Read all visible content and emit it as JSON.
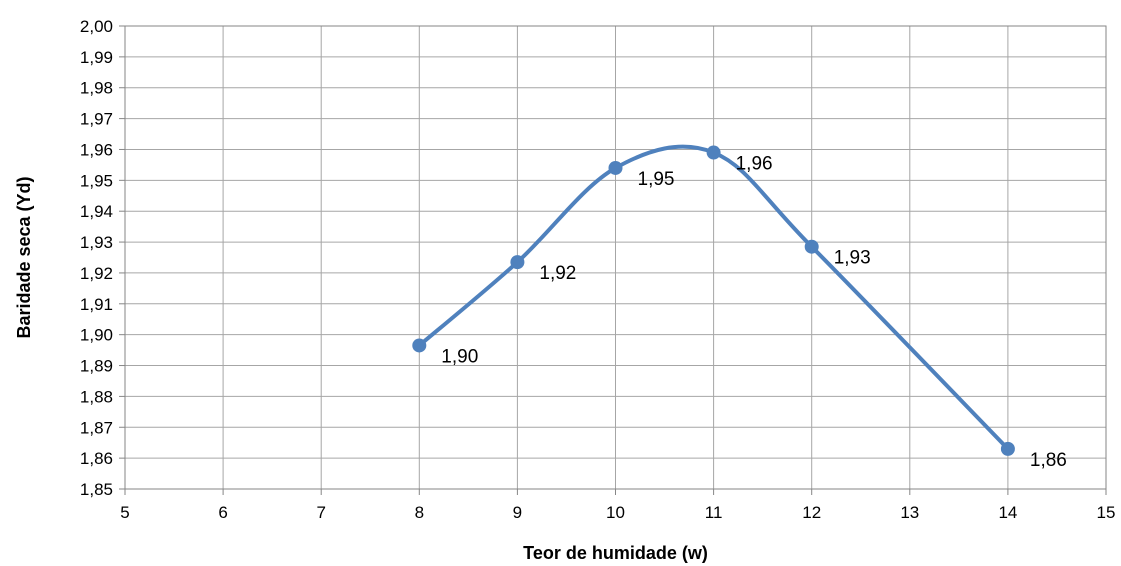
{
  "chart_data": {
    "type": "line",
    "title": "",
    "xlabel": "Teor de humidade (w)",
    "ylabel": "Baridade seca (Yd)",
    "xlim": [
      5,
      15
    ],
    "ylim": [
      1.85,
      2.0
    ],
    "x_ticks": [
      "5",
      "6",
      "7",
      "8",
      "9",
      "10",
      "11",
      "12",
      "13",
      "14",
      "15"
    ],
    "y_ticks": [
      "2,00",
      "1,99",
      "1,98",
      "1,97",
      "1,96",
      "1,95",
      "1,94",
      "1,93",
      "1,92",
      "1,91",
      "1,90",
      "1,89",
      "1,88",
      "1,87",
      "1,86",
      "1,85"
    ],
    "grid": true,
    "smooth": true,
    "series": [
      {
        "color": "#4f81bd",
        "x": [
          8,
          9,
          10,
          11,
          12,
          14
        ],
        "y": [
          1.8965,
          1.9235,
          1.954,
          1.959,
          1.9285,
          1.863
        ],
        "labels": [
          "1,90",
          "1,92",
          "1,95",
          "1,96",
          "1,93",
          "1,86"
        ]
      }
    ]
  }
}
